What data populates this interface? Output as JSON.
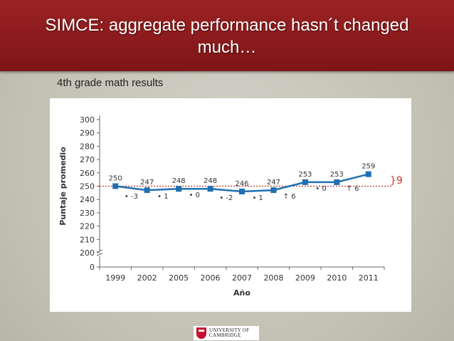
{
  "slide": {
    "title_line1": "SIMCE:  aggregate performance hasn´t changed",
    "title_line2": "much…",
    "subtitle": "4th grade math results"
  },
  "logo": {
    "line1": "UNIVERSITY OF",
    "line2": "CAMBRIDGE"
  },
  "colors": {
    "header": "#8a1a1c",
    "series": "#1f6fb2",
    "reference": "#c0392b"
  },
  "chart_data": {
    "type": "line",
    "categories": [
      "1999",
      "2002",
      "2005",
      "2006",
      "2007",
      "2008",
      "2009",
      "2010",
      "2011"
    ],
    "series": [
      {
        "values": [
          250,
          247,
          248,
          248,
          246,
          247,
          253,
          253,
          259
        ]
      }
    ],
    "data_labels": [
      "250",
      "247",
      "248",
      "248",
      "246",
      "247",
      "253",
      "253",
      "259"
    ],
    "change_labels": [
      "• -3",
      "• 1",
      "• 0",
      "• -2",
      "• 1",
      "↑ 6",
      "• 0",
      "↑ 6"
    ],
    "reference_line": 250,
    "bracket_label": "}9",
    "yticks": [
      "0",
      "200",
      "210",
      "220",
      "230",
      "240",
      "250",
      "260",
      "270",
      "280",
      "290",
      "300"
    ],
    "ylim": [
      200,
      300
    ],
    "xlabel": "Año",
    "ylabel": "Puntaje promedio",
    "axis_break": true,
    "grid": false
  }
}
